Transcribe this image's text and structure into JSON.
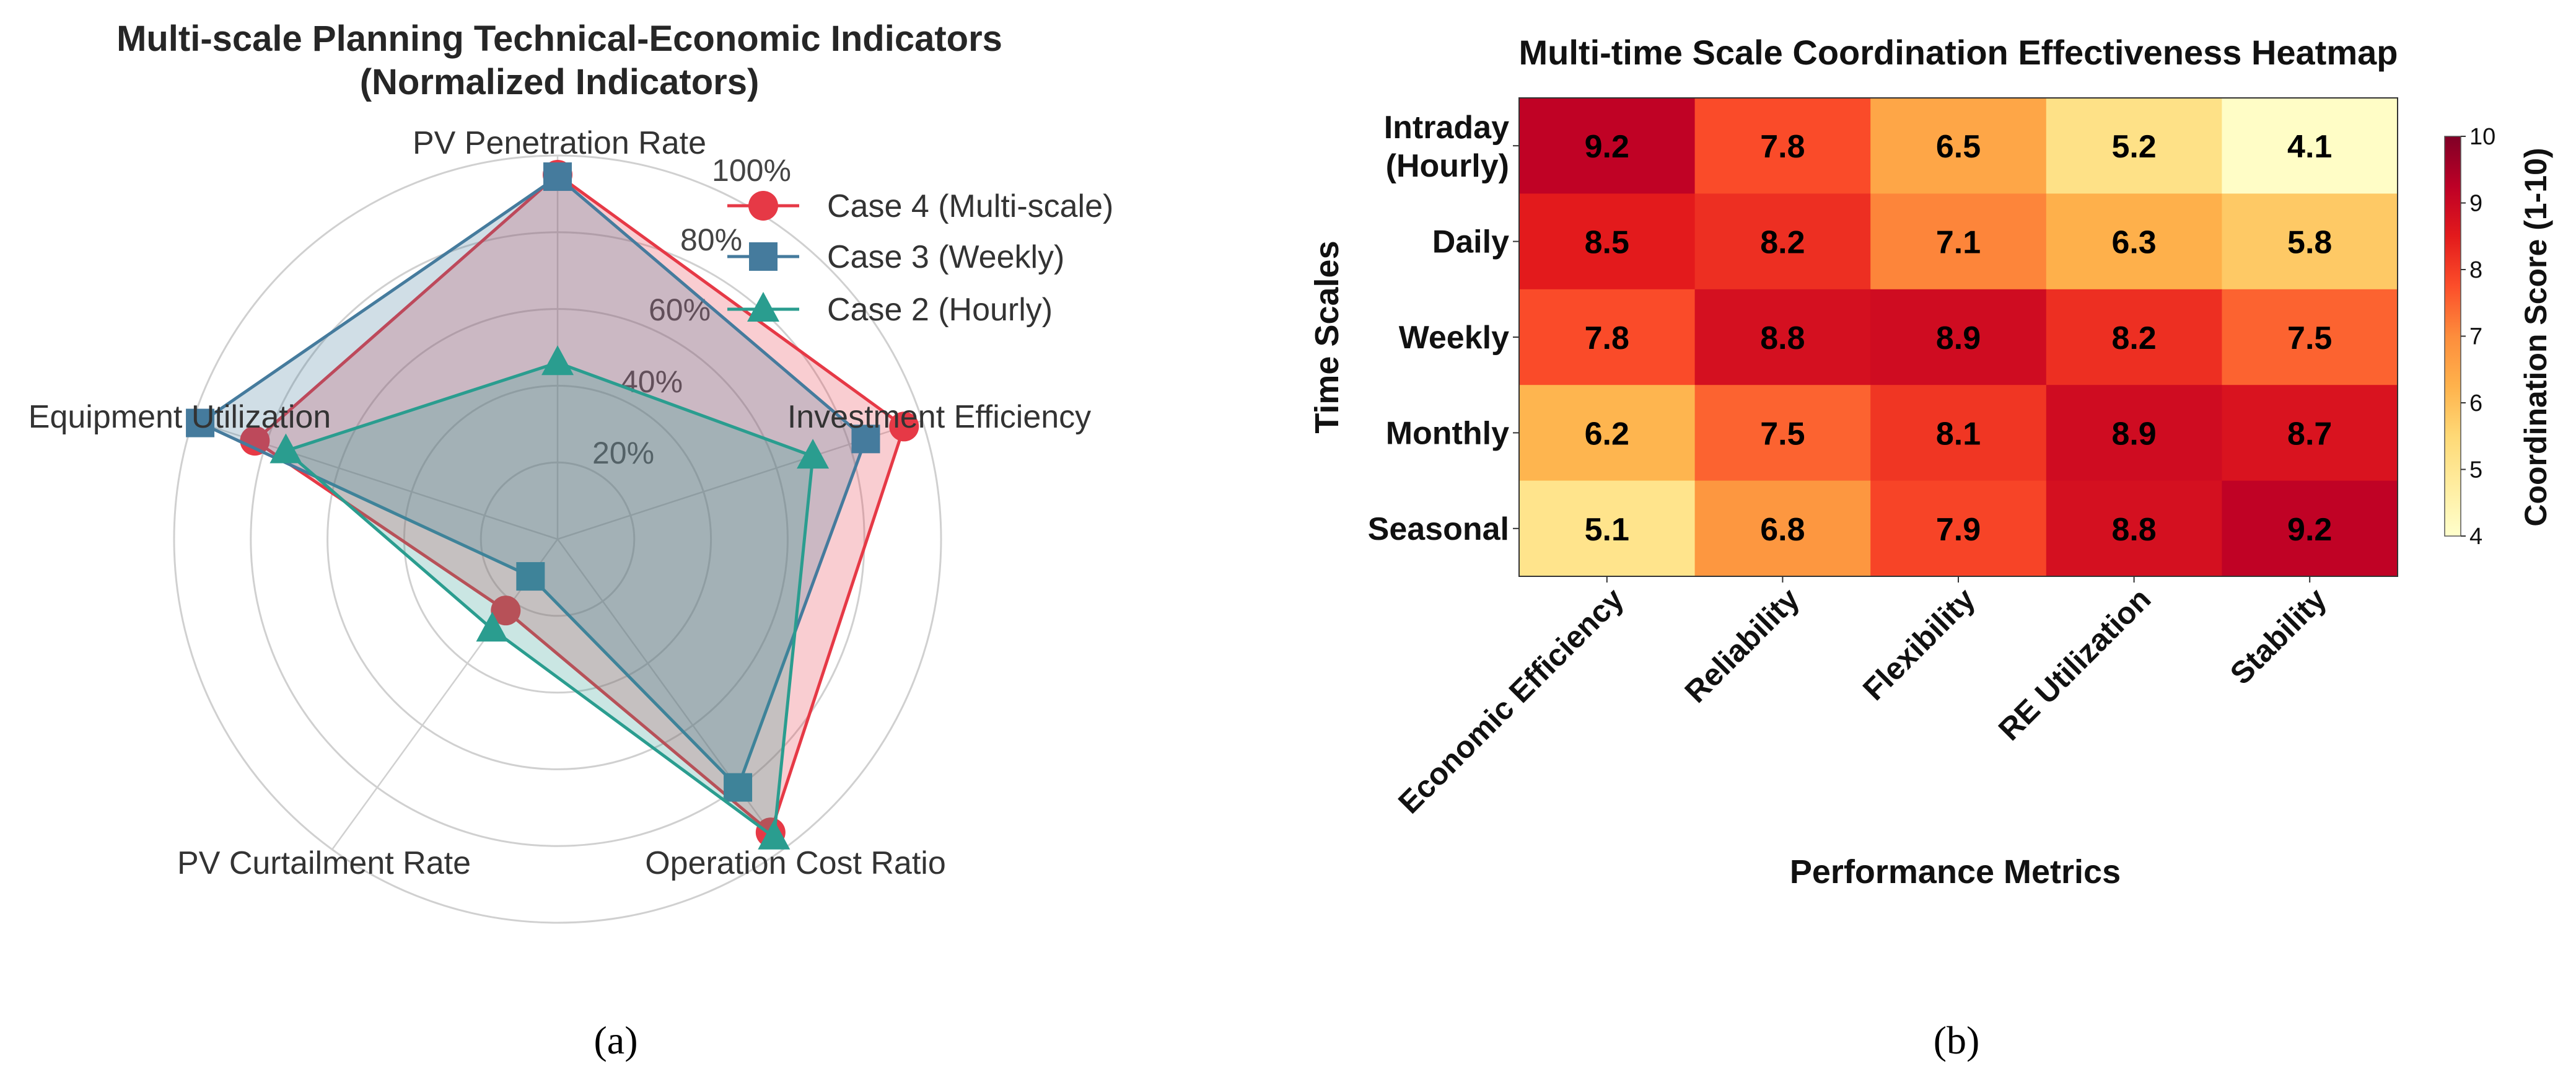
{
  "chart_data": [
    {
      "type": "radar",
      "title": [
        "Multi-scale Planning Technical-Economic Indicators",
        "(Normalized Indicators)"
      ],
      "axes": [
        "PV Penetration Rate",
        "Investment Efficiency",
        "Operation Cost Ratio",
        "PV Curtailment Rate",
        "Equipment Utilization"
      ],
      "radial_ticks": [
        0.2,
        0.4,
        0.6,
        0.8,
        1.0
      ],
      "radial_tick_labels": [
        "20%",
        "40%",
        "60%",
        "80%",
        "100%"
      ],
      "rlim": [
        0,
        1
      ],
      "legend_position": "top-right",
      "series": [
        {
          "name": "Case 4 (Multi-scale)",
          "color": "#e63946",
          "marker": "circle",
          "values": [
            0.95,
            0.95,
            0.945,
            0.23,
            0.83
          ]
        },
        {
          "name": "Case 3 (Weekly)",
          "color": "#457b9d",
          "marker": "square",
          "values": [
            0.945,
            0.845,
            0.8,
            0.12,
            0.98
          ]
        },
        {
          "name": "Case 2 (Hourly)",
          "color": "#2a9d8f",
          "marker": "triangle",
          "values": [
            0.46,
            0.7,
            0.96,
            0.29,
            0.745
          ]
        }
      ],
      "caption": "(a)"
    },
    {
      "type": "heatmap",
      "title": "Multi-time Scale Coordination Effectiveness Heatmap",
      "xlabel": "Performance Metrics",
      "ylabel": "Time Scales",
      "x_categories": [
        "Economic Efficiency",
        "Reliability",
        "Flexibility",
        "RE Utilization",
        "Stability"
      ],
      "y_categories": [
        "Intraday\n(Hourly)",
        "Daily",
        "Weekly",
        "Monthly",
        "Seasonal"
      ],
      "values": [
        [
          9.2,
          7.8,
          6.5,
          5.2,
          4.1
        ],
        [
          8.5,
          8.2,
          7.1,
          6.3,
          5.8
        ],
        [
          7.8,
          8.8,
          8.9,
          8.2,
          7.5
        ],
        [
          6.2,
          7.5,
          8.1,
          8.9,
          8.7
        ],
        [
          5.1,
          6.8,
          7.9,
          8.8,
          9.2
        ]
      ],
      "colormap": "YlOrRd",
      "vlim": [
        4,
        10
      ],
      "colorbar_label": "Coordination Score (1-10)",
      "colorbar_ticks": [
        4,
        5,
        6,
        7,
        8,
        9,
        10
      ],
      "caption": "(b)"
    }
  ]
}
